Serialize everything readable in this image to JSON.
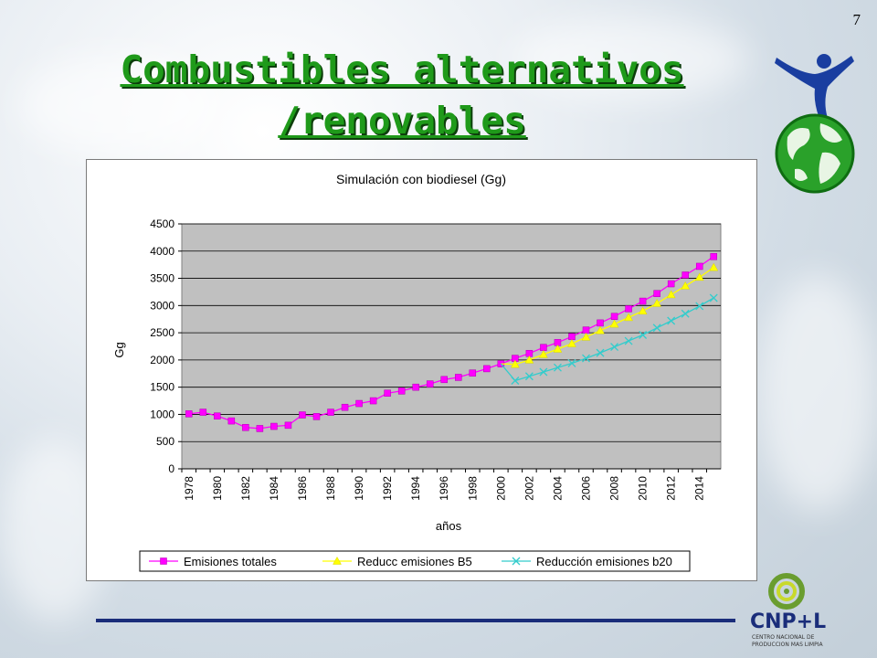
{
  "slide_number": "7",
  "title_line1": "Combustibles alternativos",
  "title_line2": "/renovables",
  "brand": {
    "name": "CNP+L",
    "subtitle_line1": "CENTRO NACIONAL DE",
    "subtitle_line2": "PRODUCCION MAS LIMPIA"
  },
  "colors": {
    "title": "#1f9a1a",
    "plot_area": "#c0c0c0",
    "series_total": "#ff00ff",
    "series_b5": "#ffff00",
    "series_b20": "#33cccc",
    "rule": "#1a2d7a"
  },
  "chart_data": {
    "type": "line",
    "title": "Simulación con biodiesel (Gg)",
    "xlabel": "años",
    "ylabel": "Gg",
    "ylim": [
      0,
      4500
    ],
    "yticks": [
      0,
      500,
      1000,
      1500,
      2000,
      2500,
      3000,
      3500,
      4000,
      4500
    ],
    "x": [
      1978,
      1979,
      1980,
      1981,
      1982,
      1983,
      1984,
      1985,
      1986,
      1987,
      1988,
      1989,
      1990,
      1991,
      1992,
      1993,
      1994,
      1995,
      1996,
      1997,
      1998,
      1999,
      2000,
      2001,
      2002,
      2003,
      2004,
      2005,
      2006,
      2007,
      2008,
      2009,
      2010,
      2011,
      2012,
      2013,
      2014,
      2015
    ],
    "xtick_labels": [
      1978,
      1980,
      1982,
      1984,
      1986,
      1988,
      1990,
      1992,
      1994,
      1996,
      1998,
      2000,
      2002,
      2004,
      2006,
      2008,
      2010,
      2012,
      2014
    ],
    "grid": "horizontal",
    "legend_position": "bottom",
    "series": [
      {
        "name": "Emisiones totales",
        "marker": "square",
        "x": [
          1978,
          1979,
          1980,
          1981,
          1982,
          1983,
          1984,
          1985,
          1986,
          1987,
          1988,
          1989,
          1990,
          1991,
          1992,
          1993,
          1994,
          1995,
          1996,
          1997,
          1998,
          1999,
          2000,
          2001,
          2002,
          2003,
          2004,
          2005,
          2006,
          2007,
          2008,
          2009,
          2010,
          2011,
          2012,
          2013,
          2014,
          2015
        ],
        "values": [
          1010,
          1040,
          970,
          880,
          760,
          740,
          780,
          800,
          990,
          960,
          1040,
          1130,
          1200,
          1250,
          1390,
          1430,
          1500,
          1560,
          1640,
          1680,
          1760,
          1840,
          1930,
          2030,
          2120,
          2230,
          2320,
          2430,
          2550,
          2680,
          2800,
          2940,
          3080,
          3220,
          3400,
          3560,
          3720,
          3900
        ]
      },
      {
        "name": "Reducc emisiones B5",
        "marker": "triangle",
        "x": [
          2000,
          2001,
          2002,
          2003,
          2004,
          2005,
          2006,
          2007,
          2008,
          2009,
          2010,
          2011,
          2012,
          2013,
          2014,
          2015
        ],
        "values": [
          1930,
          1920,
          2000,
          2100,
          2200,
          2300,
          2420,
          2540,
          2660,
          2780,
          2900,
          3040,
          3200,
          3360,
          3520,
          3700
        ]
      },
      {
        "name": "Reducción emisiones b20",
        "marker": "x",
        "x": [
          2000,
          2001,
          2002,
          2003,
          2004,
          2005,
          2006,
          2007,
          2008,
          2009,
          2010,
          2011,
          2012,
          2013,
          2014,
          2015
        ],
        "values": [
          1930,
          1620,
          1700,
          1780,
          1860,
          1940,
          2030,
          2130,
          2240,
          2350,
          2460,
          2590,
          2720,
          2850,
          2990,
          3140
        ]
      }
    ]
  }
}
